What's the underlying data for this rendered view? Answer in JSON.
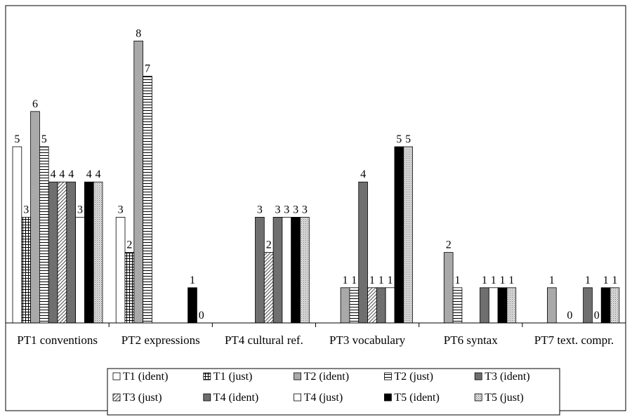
{
  "chart_data": {
    "type": "bar",
    "categories": [
      "PT1 conventions",
      "PT2 expressions",
      "PT4 cultural ref.",
      "PT3 vocabulary",
      "PT6 syntax",
      "PT7 text. compr."
    ],
    "ylim": [
      0,
      9
    ],
    "grid": false,
    "legend_position": "bottom",
    "series": [
      {
        "name": "T1 (ident)",
        "pattern": "white",
        "values": [
          5,
          3,
          null,
          null,
          null,
          null
        ]
      },
      {
        "name": "T1 (just)",
        "pattern": "grid",
        "values": [
          3,
          2,
          null,
          null,
          null,
          null
        ]
      },
      {
        "name": "T2 (ident)",
        "pattern": "lightgray",
        "values": [
          6,
          8,
          null,
          1,
          2,
          1
        ]
      },
      {
        "name": "T2 (just)",
        "pattern": "hlines",
        "values": [
          5,
          7,
          null,
          1,
          1,
          null
        ]
      },
      {
        "name": "T3 (ident)",
        "pattern": "gray",
        "values": [
          4,
          null,
          3,
          4,
          null,
          0
        ]
      },
      {
        "name": "T3 (just)",
        "pattern": "diagonal",
        "values": [
          4,
          null,
          2,
          1,
          null,
          null
        ]
      },
      {
        "name": "T4 (ident)",
        "pattern": "gray",
        "values": [
          4,
          null,
          3,
          1,
          1,
          1
        ]
      },
      {
        "name": "T4 (just)",
        "pattern": "white",
        "values": [
          3,
          null,
          3,
          1,
          1,
          0
        ]
      },
      {
        "name": "T5 (ident)",
        "pattern": "black",
        "values": [
          4,
          1,
          3,
          5,
          1,
          1
        ]
      },
      {
        "name": "T5 (just)",
        "pattern": "dotted",
        "values": [
          4,
          0,
          3,
          5,
          1,
          1
        ]
      }
    ]
  }
}
